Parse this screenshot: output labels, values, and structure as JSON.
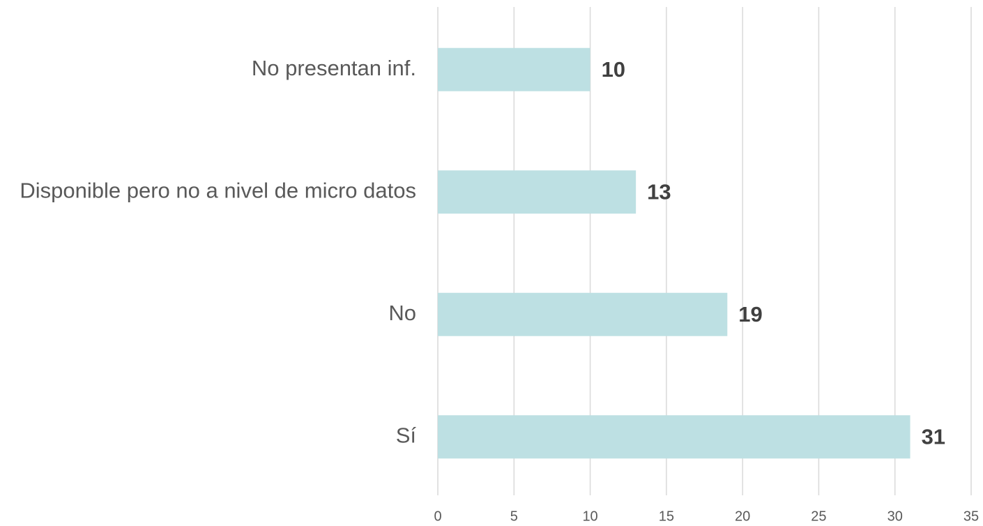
{
  "chart_data": {
    "type": "bar",
    "orientation": "horizontal",
    "categories": [
      "No presentan inf.",
      "Disponible pero no a nivel de micro datos",
      "No",
      "Sí"
    ],
    "values": [
      10,
      13,
      19,
      31
    ],
    "color": "#bde0e3",
    "xlim": [
      0,
      35
    ],
    "xticks": [
      0,
      5,
      10,
      15,
      20,
      25,
      30,
      35
    ],
    "grid": true
  }
}
